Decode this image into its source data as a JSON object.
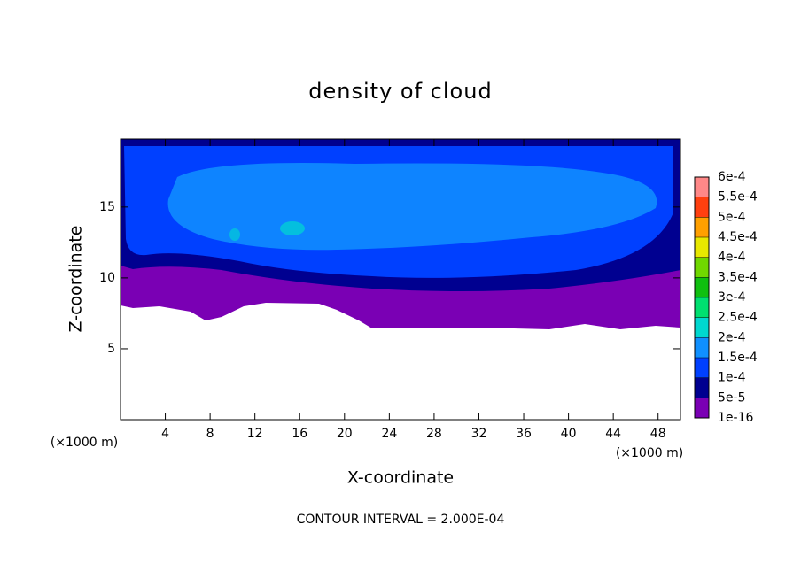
{
  "chart_data": {
    "type": "contour",
    "title": "density of cloud",
    "x_label": "X-coordinate",
    "y_label": "Z-coordinate",
    "x_unit": "(×1000 m)",
    "annotation": "CONTOUR INTERVAL = 2.000E-04",
    "xlim": [
      0,
      50
    ],
    "xticks": [
      4,
      8,
      12,
      16,
      20,
      24,
      28,
      32,
      36,
      40,
      44,
      48
    ],
    "ylim": [
      0,
      19.8
    ],
    "yticks": [
      5,
      10,
      15
    ],
    "colorbar": {
      "levels": [
        {
          "value": 1e-16,
          "label": "1e-16"
        },
        {
          "value": 5e-05,
          "label": "5e-5"
        },
        {
          "value": 0.0001,
          "label": "1e-4"
        },
        {
          "value": 0.00015,
          "label": "1.5e-4"
        },
        {
          "value": 0.0002,
          "label": "2e-4"
        },
        {
          "value": 0.00025,
          "label": "2.5e-4"
        },
        {
          "value": 0.0003,
          "label": "3e-4"
        },
        {
          "value": 0.00035,
          "label": "3.5e-4"
        },
        {
          "value": 0.0004,
          "label": "4e-4"
        },
        {
          "value": 0.00045,
          "label": "4.5e-4"
        },
        {
          "value": 0.0005,
          "label": "5e-4"
        },
        {
          "value": 0.00055,
          "label": "5.5e-4"
        },
        {
          "value": 0.0006,
          "label": "6e-4"
        }
      ],
      "colors": [
        "#7a00b4",
        "#000090",
        "#0040ff",
        "#1090ff",
        "#00d8d0",
        "#00e070",
        "#10c010",
        "#70d800",
        "#e8e800",
        "#ffa000",
        "#ff4010",
        "#ff8888"
      ]
    }
  }
}
